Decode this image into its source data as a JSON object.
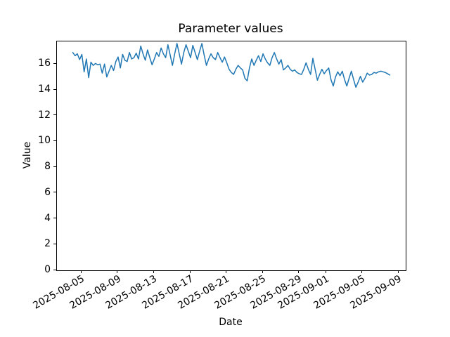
{
  "figure": {
    "background_color": "#ffffff",
    "spine_color": "#000000",
    "text_color": "#000000"
  },
  "chart_data": {
    "type": "line",
    "title": "Parameter values",
    "xlabel": "Date",
    "ylabel": "Value",
    "legend": null,
    "grid": false,
    "series_name": "Parameter values",
    "series_color": "#1f77b4",
    "line_width": 1.5,
    "x_start_date": "2025-08-04",
    "x_interval_hours": 6,
    "x_unit": "days since 2025-08-04",
    "xlim_days": [
      -1.75,
      36.75
    ],
    "ylim": [
      0,
      17.76
    ],
    "y_ticks": [
      0,
      2,
      4,
      6,
      8,
      10,
      12,
      14,
      16
    ],
    "x_tick_rotation_deg": 30,
    "x_ticks": [
      {
        "label": "2025-08-05",
        "day": 1
      },
      {
        "label": "2025-08-09",
        "day": 5
      },
      {
        "label": "2025-08-13",
        "day": 9
      },
      {
        "label": "2025-08-17",
        "day": 13
      },
      {
        "label": "2025-08-21",
        "day": 17
      },
      {
        "label": "2025-08-25",
        "day": 21
      },
      {
        "label": "2025-08-29",
        "day": 25
      },
      {
        "label": "2025-09-01",
        "day": 28
      },
      {
        "label": "2025-09-05",
        "day": 32
      },
      {
        "label": "2025-09-09",
        "day": 36
      }
    ],
    "values": [
      16.9,
      16.65,
      16.8,
      16.35,
      16.75,
      15.4,
      16.4,
      14.95,
      16.15,
      15.9,
      16.05,
      15.95,
      16.0,
      15.3,
      16.0,
      15.0,
      15.45,
      15.9,
      15.5,
      16.2,
      16.55,
      15.7,
      16.75,
      16.3,
      16.2,
      16.9,
      16.4,
      16.5,
      16.85,
      16.4,
      17.4,
      16.8,
      16.3,
      17.1,
      16.5,
      15.95,
      16.4,
      16.9,
      16.6,
      17.25,
      16.8,
      16.5,
      17.5,
      16.7,
      15.9,
      16.8,
      17.6,
      16.8,
      16.0,
      16.9,
      17.5,
      17.0,
      16.5,
      17.45,
      16.9,
      16.35,
      17.0,
      17.6,
      16.7,
      15.9,
      16.4,
      16.8,
      16.5,
      16.35,
      16.9,
      16.5,
      16.15,
      16.55,
      16.1,
      15.6,
      15.35,
      15.2,
      15.6,
      15.9,
      15.7,
      15.55,
      14.9,
      14.7,
      15.7,
      16.4,
      15.9,
      16.3,
      16.65,
      16.2,
      16.8,
      16.4,
      16.1,
      15.9,
      16.5,
      16.9,
      16.4,
      16.0,
      16.35,
      15.55,
      15.7,
      15.9,
      15.6,
      15.45,
      15.55,
      15.35,
      15.25,
      15.2,
      15.6,
      16.1,
      15.6,
      15.2,
      16.45,
      15.6,
      14.75,
      15.2,
      15.6,
      15.25,
      15.5,
      15.7,
      14.8,
      14.3,
      15.0,
      15.4,
      15.1,
      15.45,
      14.8,
      14.3,
      14.9,
      15.45,
      14.8,
      14.2,
      14.6,
      15.05,
      14.6,
      14.9,
      15.3,
      15.15,
      15.2,
      15.35,
      15.3,
      15.4,
      15.45,
      15.4,
      15.35,
      15.25,
      15.15
    ]
  }
}
